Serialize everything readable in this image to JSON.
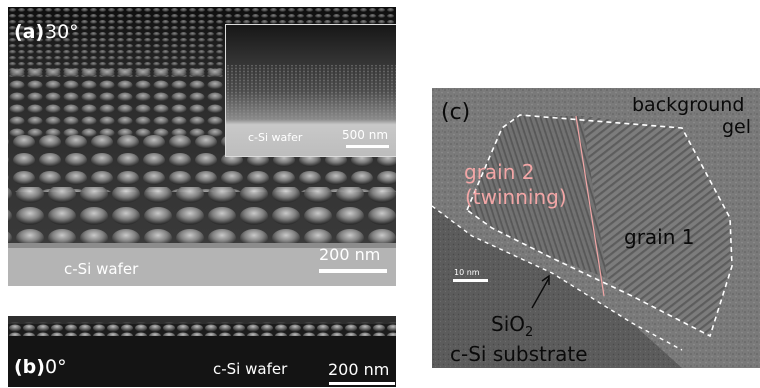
{
  "panel_a": {
    "label_letter": "(a)",
    "label_angle": "30°",
    "wafer_label": "c-Si wafer",
    "scale_label": "200 nm",
    "inset": {
      "wafer_label": "c-Si wafer",
      "scale_label": "500 nm"
    }
  },
  "panel_b": {
    "label_letter": "(b)",
    "label_angle": "0°",
    "wafer_label": "c-Si wafer",
    "scale_label": "200 nm"
  },
  "panel_c": {
    "label": "(c)",
    "background_line1": "background",
    "background_line2": "gel",
    "grain2_line1": "grain 2",
    "grain2_line2": "(twinning)",
    "grain1": "grain 1",
    "sio2_base": "SiO",
    "sio2_sub": "2",
    "substrate": "c-Si substrate",
    "scale_label": "10 nm"
  },
  "colors": {
    "annotation_pink": "#f2a6a6",
    "outline": "#ffffff"
  }
}
